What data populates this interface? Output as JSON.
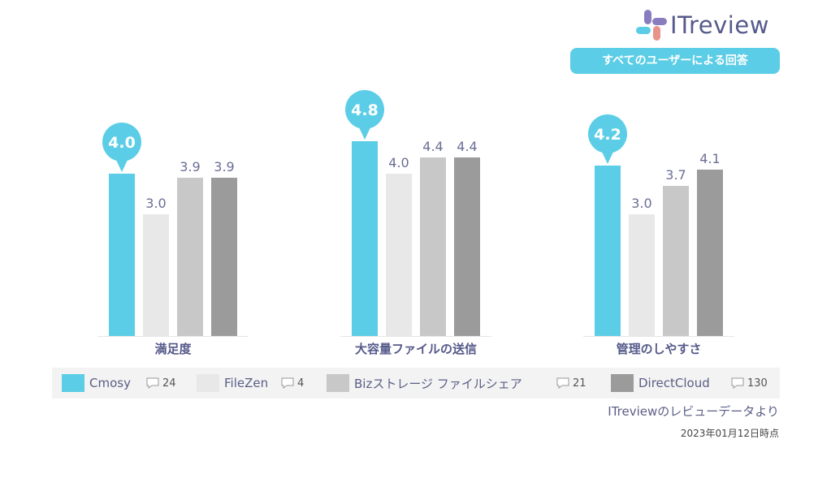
{
  "brand": {
    "logo_text": "ITreview",
    "badge": "すべてのユーザーによる回答"
  },
  "colors": {
    "Cmosy": "#5bcde6",
    "FileZen": "#e8e8e8",
    "Bizストレージ ファイルシェア": "#c8c8c8",
    "DirectCloud": "#9b9b9b"
  },
  "chart_data": {
    "type": "bar",
    "categories": [
      "満足度",
      "大容量ファイルの送信",
      "管理のしやすさ"
    ],
    "ylim": [
      0,
      5
    ],
    "series": [
      {
        "name": "Cmosy",
        "values": [
          4.0,
          4.8,
          4.2
        ]
      },
      {
        "name": "FileZen",
        "values": [
          3.0,
          4.0,
          3.0
        ]
      },
      {
        "name": "Bizストレージ ファイルシェア",
        "values": [
          3.9,
          4.4,
          3.7
        ]
      },
      {
        "name": "DirectCloud",
        "values": [
          3.9,
          4.4,
          4.1
        ]
      }
    ],
    "value_labels": [
      [
        "4.0",
        "3.0",
        "3.9",
        "3.9"
      ],
      [
        "4.8",
        "4.0",
        "4.4",
        "4.4"
      ],
      [
        "4.2",
        "3.0",
        "3.7",
        "4.1"
      ]
    ],
    "legend_position": "bottom"
  },
  "legend": [
    {
      "name": "Cmosy",
      "count": "24"
    },
    {
      "name": "FileZen",
      "count": "4"
    },
    {
      "name": "Bizストレージ ファイルシェア",
      "count": "21"
    },
    {
      "name": "DirectCloud",
      "count": "130"
    }
  ],
  "footer": {
    "source": "ITreviewのレビューデータより",
    "date": "2023年01月12日時点"
  }
}
